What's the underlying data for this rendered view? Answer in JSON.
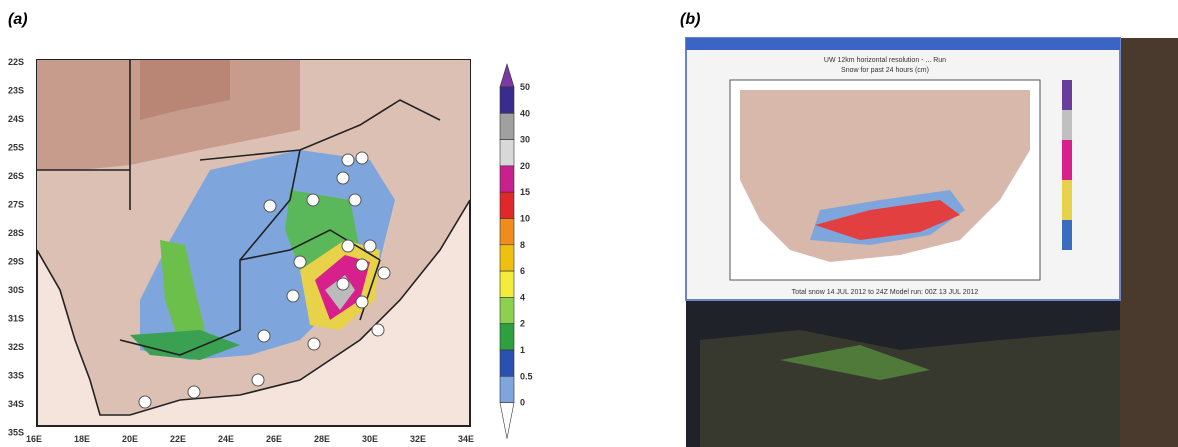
{
  "panel_a": {
    "label": "(a)",
    "lat_labels": [
      "22S",
      "23S",
      "24S",
      "25S",
      "26S",
      "27S",
      "28S",
      "29S",
      "30S",
      "31S",
      "32S",
      "33S",
      "34S",
      "35S"
    ],
    "lon_labels": [
      "16E",
      "18E",
      "20E",
      "22E",
      "24E",
      "26E",
      "28E",
      "30E",
      "32E",
      "34E"
    ],
    "colorbar_labels": [
      "50",
      "40",
      "30",
      "20",
      "15",
      "10",
      "8",
      "6",
      "4",
      "2",
      "1",
      "0.5",
      "0"
    ]
  },
  "panel_b": {
    "label": "(b)",
    "window_title": "UW 12km horizontal resolution - ... Run",
    "window_subtitle": "Snow for past 24 hours (cm)",
    "window_footer": "Total snow 14 JUL 2012 to 24Z   Model run: 00Z 13 JUL 2012"
  }
}
